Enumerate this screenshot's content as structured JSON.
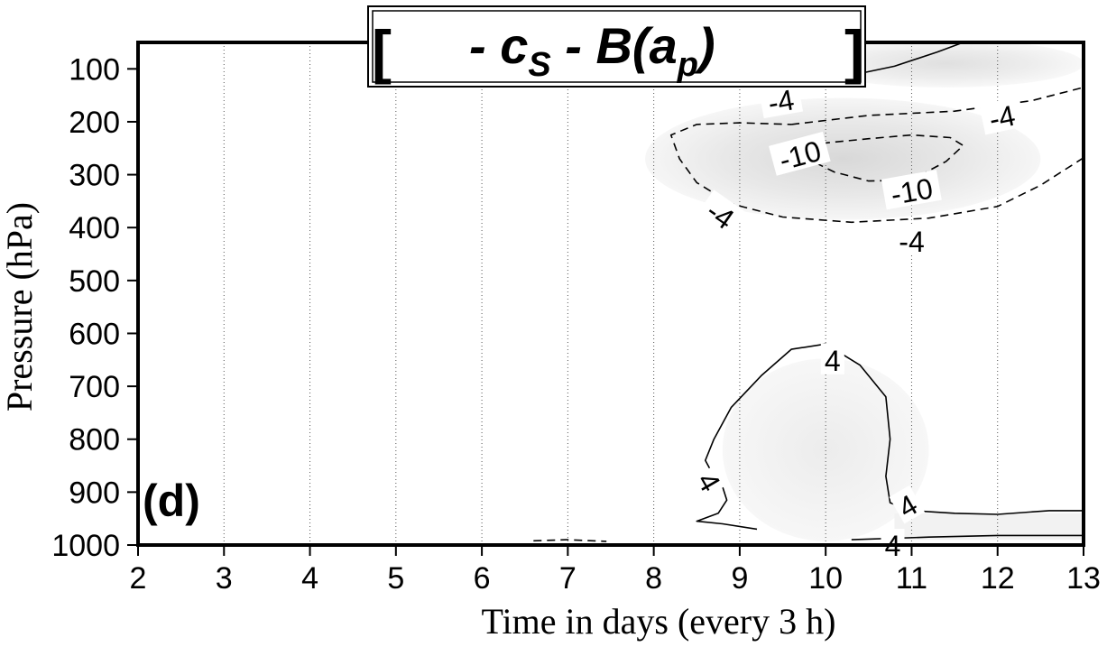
{
  "chart_data": {
    "type": "contour",
    "title": {
      "bracket_left": "[",
      "minus1": "- c",
      "sub_s": "S",
      "minus2": " - B(a",
      "sub_p": "p",
      "close_paren": ")",
      "bracket_right": "]"
    },
    "panel_label": "(d)",
    "xlabel": "Time in days (every 3 h)",
    "ylabel": "Pressure (hPa)",
    "xlim": [
      2,
      13
    ],
    "ylim": [
      1000,
      50
    ],
    "y_inverted": true,
    "x_ticks": [
      2,
      3,
      4,
      5,
      6,
      7,
      8,
      9,
      10,
      11,
      12,
      13
    ],
    "y_ticks": [
      100,
      200,
      300,
      400,
      500,
      600,
      700,
      800,
      900,
      1000
    ],
    "grid": {
      "x_vertical_dotted": true,
      "y": false
    },
    "contour_levels": [
      -10,
      -4,
      4
    ],
    "negative_contours_style": "dashed",
    "positive_contours_style": "solid",
    "shading": "light gray where |value| >= 4",
    "contours": [
      {
        "level": 4,
        "style": "solid",
        "points": [
          [
            9.3,
            95
          ],
          [
            9.8,
            115
          ],
          [
            10.3,
            112
          ],
          [
            10.8,
            95
          ],
          [
            11.3,
            68
          ],
          [
            11.6,
            50
          ]
        ]
      },
      {
        "level": -4,
        "style": "dashed",
        "points": [
          [
            9.6,
            205
          ],
          [
            10.5,
            188
          ],
          [
            11.5,
            180
          ],
          [
            12.4,
            160
          ],
          [
            13,
            135
          ]
        ]
      },
      {
        "level": -4,
        "style": "dashed",
        "points": [
          [
            13,
            268
          ],
          [
            12.5,
            320
          ],
          [
            12,
            360
          ],
          [
            11.2,
            382
          ],
          [
            10.3,
            390
          ],
          [
            9.5,
            380
          ],
          [
            8.9,
            355
          ],
          [
            8.5,
            315
          ],
          [
            8.3,
            270
          ],
          [
            8.2,
            225
          ],
          [
            8.5,
            205
          ],
          [
            9.0,
            202
          ],
          [
            9.6,
            205
          ]
        ]
      },
      {
        "level": -10,
        "style": "dashed",
        "points": [
          [
            9.6,
            255
          ],
          [
            10.1,
            295
          ],
          [
            10.5,
            312
          ],
          [
            11.0,
            310
          ],
          [
            11.4,
            275
          ],
          [
            11.6,
            245
          ],
          [
            11.45,
            230
          ],
          [
            11.0,
            225
          ],
          [
            10.5,
            232
          ],
          [
            10.0,
            240
          ],
          [
            9.6,
            255
          ]
        ]
      },
      {
        "level": 4,
        "style": "solid",
        "points": [
          [
            10.0,
            620
          ],
          [
            9.6,
            630
          ],
          [
            9.25,
            680
          ],
          [
            8.9,
            740
          ],
          [
            8.7,
            800
          ],
          [
            8.6,
            840
          ],
          [
            8.7,
            870
          ],
          [
            8.8,
            890
          ],
          [
            8.85,
            915
          ],
          [
            8.75,
            940
          ],
          [
            8.5,
            955
          ],
          [
            8.8,
            960
          ],
          [
            9.2,
            970
          ]
        ]
      },
      {
        "level": 4,
        "style": "solid",
        "points": [
          [
            10.0,
            620
          ],
          [
            10.4,
            660
          ],
          [
            10.7,
            720
          ],
          [
            10.75,
            800
          ],
          [
            10.7,
            870
          ],
          [
            10.75,
            920
          ],
          [
            11.0,
            935
          ],
          [
            11.5,
            940
          ],
          [
            12.0,
            942
          ],
          [
            12.6,
            935
          ],
          [
            13,
            935
          ]
        ]
      },
      {
        "level": 4,
        "style": "solid",
        "points": [
          [
            10.3,
            990
          ],
          [
            11.2,
            985
          ],
          [
            12.0,
            982
          ],
          [
            13,
            982
          ]
        ]
      },
      {
        "level": -4,
        "style": "dashed",
        "points": [
          [
            6.6,
            992
          ],
          [
            7.0,
            990
          ],
          [
            7.45,
            993
          ]
        ]
      }
    ],
    "contour_labels": [
      {
        "text": "4",
        "x": 9.55,
        "y": 92,
        "rotate": -10
      },
      {
        "text": "-4",
        "x": 9.48,
        "y": 160,
        "rotate": -10
      },
      {
        "text": "-4",
        "x": 12.05,
        "y": 190,
        "rotate": -12
      },
      {
        "text": "-10",
        "x": 9.7,
        "y": 262,
        "rotate": -15
      },
      {
        "text": "-10",
        "x": 11.0,
        "y": 330,
        "rotate": -10
      },
      {
        "text": "-4",
        "x": 8.78,
        "y": 375,
        "rotate": 35
      },
      {
        "text": "-4",
        "x": 11.0,
        "y": 425,
        "rotate": 0
      },
      {
        "text": "4",
        "x": 10.08,
        "y": 650,
        "rotate": 0
      },
      {
        "text": "4",
        "x": 8.65,
        "y": 880,
        "rotate": 60
      },
      {
        "text": "4",
        "x": 10.95,
        "y": 925,
        "rotate": -30
      },
      {
        "text": "4",
        "x": 10.78,
        "y": 1000,
        "rotate": 0
      }
    ]
  }
}
